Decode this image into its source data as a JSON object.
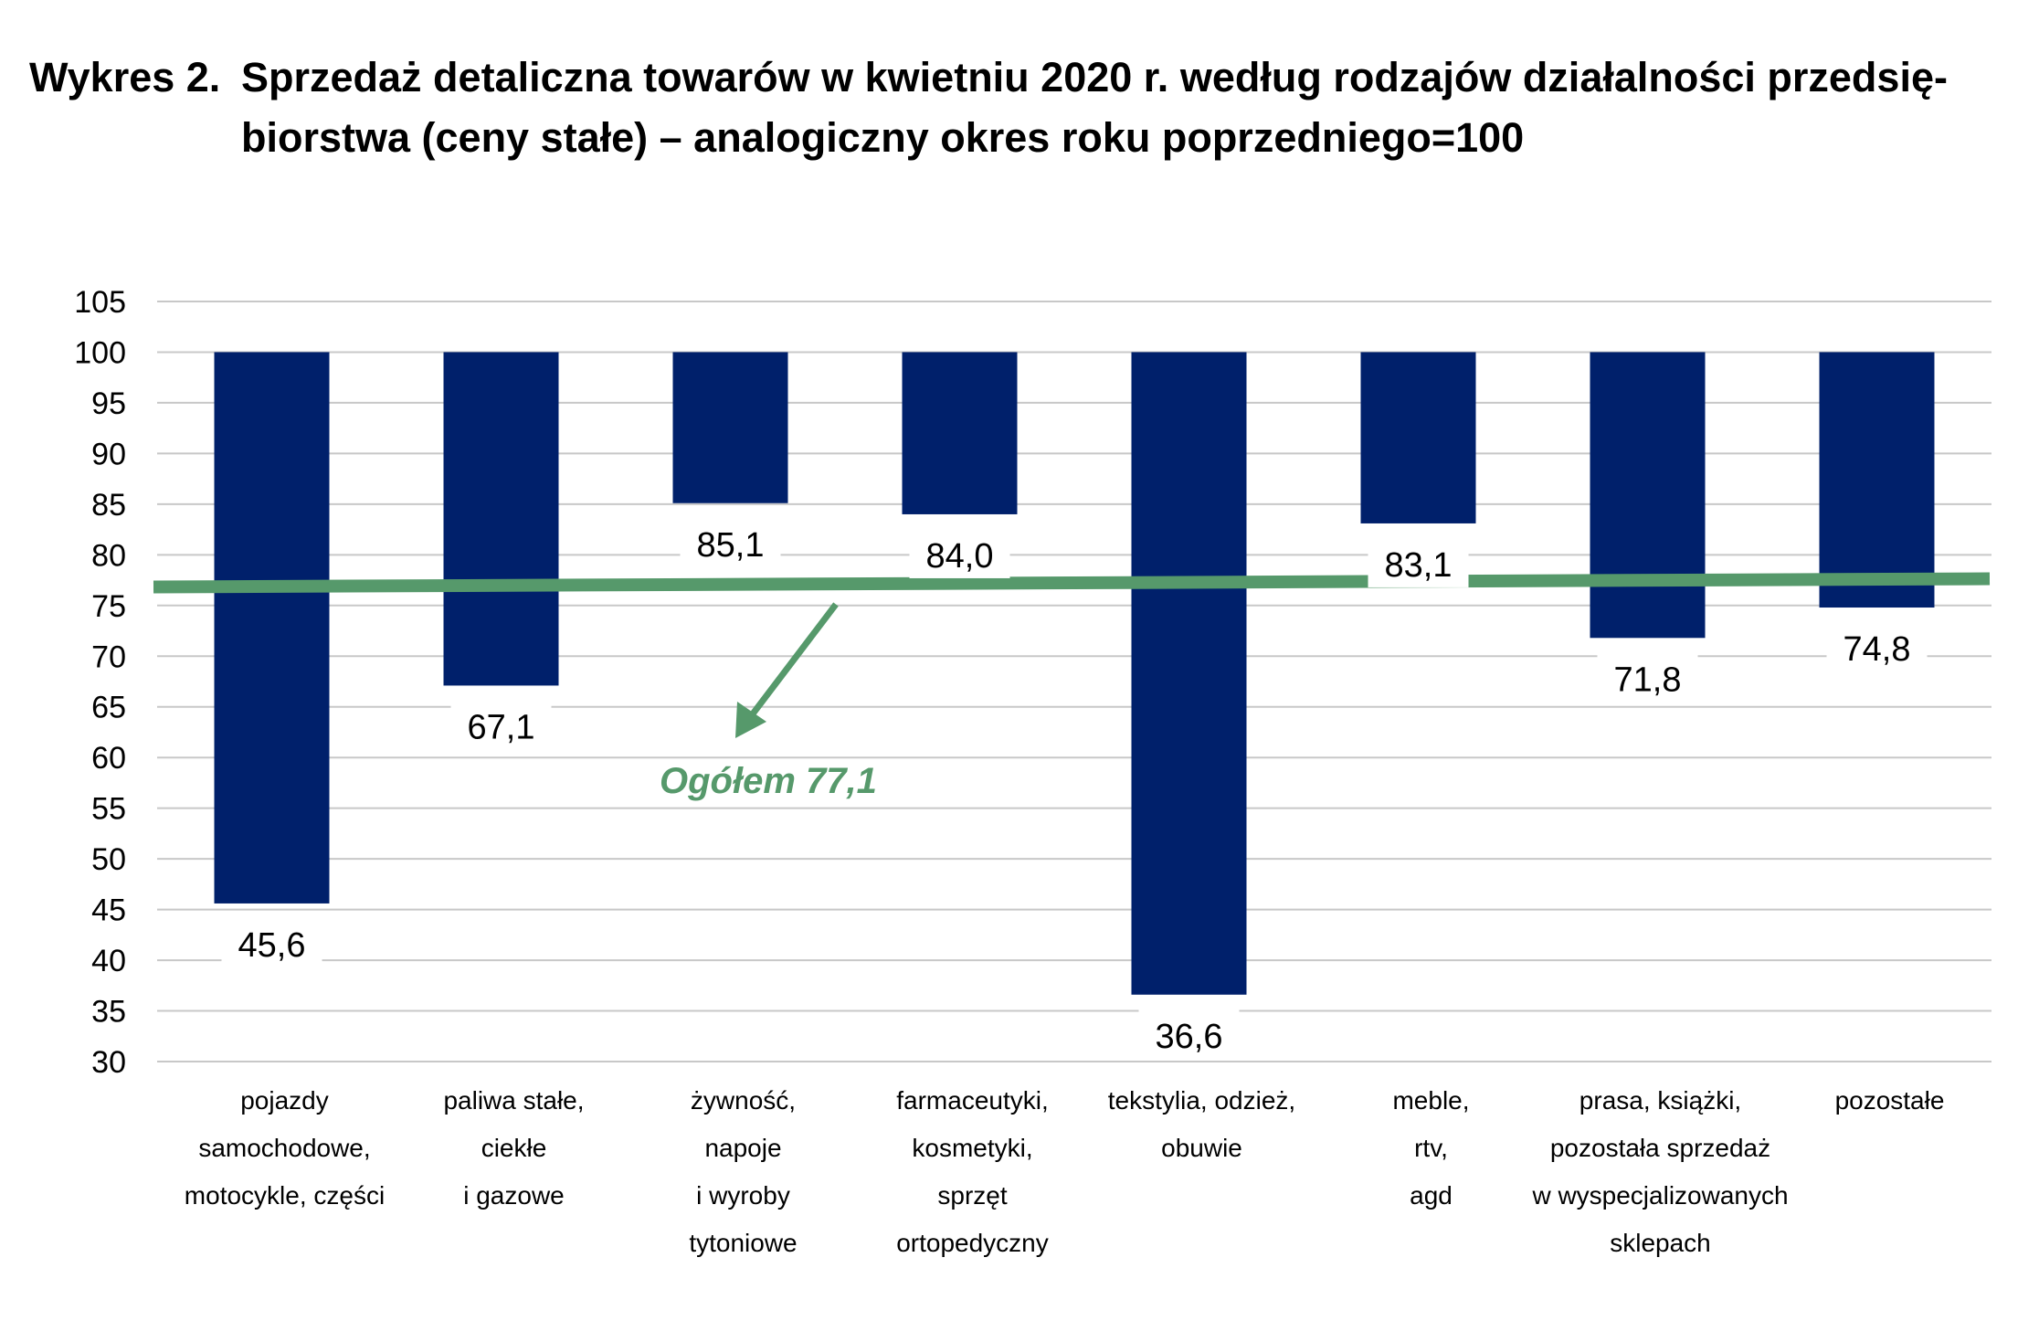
{
  "title": {
    "prefix": "Wykres 2.",
    "text": "Sprzedaż detaliczna towarów w kwietniu 2020 r. według rodzajów działalności przedsię-biorstwa (ceny stałe) – analogiczny okres roku poprzedniego=100"
  },
  "chart_data": {
    "type": "bar",
    "baseline": 100,
    "ylim": [
      30,
      105
    ],
    "yticks": [
      105,
      100,
      95,
      90,
      85,
      80,
      75,
      70,
      65,
      60,
      55,
      50,
      45,
      40,
      35,
      30
    ],
    "grid": true,
    "categories": [
      [
        "pojazdy",
        "samochodowe,",
        "motocykle, części"
      ],
      [
        "paliwa stałe,",
        "ciekłe",
        "i gazowe"
      ],
      [
        "żywność,",
        "napoje",
        "i wyroby",
        "tytoniowe"
      ],
      [
        "farmaceutyki,",
        "kosmetyki,",
        "sprzęt",
        "ortopedyczny"
      ],
      [
        "tekstylia, odzież,",
        "obuwie"
      ],
      [
        "meble,",
        "rtv,",
        "agd"
      ],
      [
        "prasa, książki,",
        "pozostała sprzedaż",
        "w wyspecjalizowanych",
        "sklepach"
      ],
      [
        "pozostałe"
      ]
    ],
    "values": [
      45.6,
      67.1,
      85.1,
      84.0,
      36.6,
      83.1,
      71.8,
      74.8
    ],
    "value_labels": [
      "45,6",
      "67,1",
      "85,1",
      "84,0",
      "36,6",
      "83,1",
      "71,8",
      "74,8"
    ],
    "overall": {
      "value": 77.1,
      "label": "Ogółem 77,1"
    },
    "colors": {
      "bar": "#00206B",
      "overall": "#56996B",
      "grid": "#C8C8C8"
    }
  }
}
